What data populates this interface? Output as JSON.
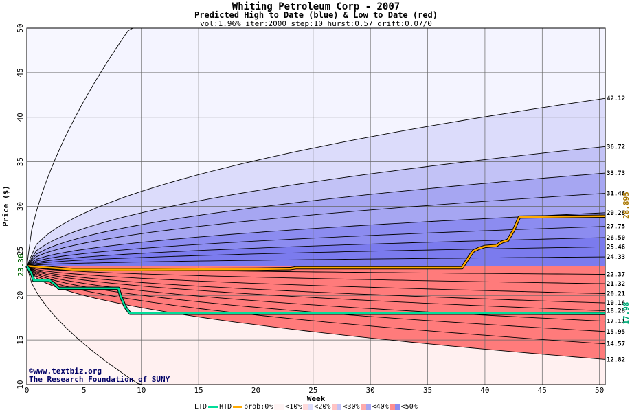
{
  "title": "Whiting Petroleum Corp - 2007",
  "subtitle": "Predicted High to Date (blue) &  Low to Date (red)",
  "params": "vol:1.96% iter:2000 step:10 hurst:0.57 drift:0.07/0",
  "credit_line1": "©www.textbiz.org",
  "credit_line2": "The Research Foundation of SUNY",
  "legend": {
    "ltd": "LTD",
    "htd": "HTD",
    "prob": "prob:0%",
    "b10": "<10%",
    "b20": "<20%",
    "b30": "<30%",
    "b40": "<40%",
    "b50": "<50%"
  },
  "colors": {
    "ltd_line": "#00dd99",
    "htd_line": "#ffaa00",
    "blue_bands": [
      "#f4f4ff",
      "#dcdcfb",
      "#c2c2f6",
      "#a6a6f2",
      "#8c8cf0",
      "#7b7bee"
    ],
    "red_bands": [
      "#fff0f0",
      "#ffdada",
      "#ffc4c4",
      "#ffabab",
      "#ff8e8e",
      "#ff7b7b"
    ]
  },
  "chart_data": {
    "type": "area",
    "xlabel": "Week",
    "ylabel": "Price ($)",
    "xlim": [
      0,
      50.5
    ],
    "ylim": [
      10,
      50
    ],
    "x_ticks": [
      0,
      5,
      10,
      15,
      20,
      25,
      30,
      35,
      40,
      45,
      50
    ],
    "y_ticks": [
      10,
      15,
      20,
      25,
      30,
      35,
      40,
      45,
      50
    ],
    "grid": true,
    "start_price": "23.30",
    "high_end_labels": [
      "42.12",
      "36.72",
      "33.73",
      "31.46",
      "29.28",
      "27.75",
      "26.50",
      "25.46",
      "24.33"
    ],
    "high_end_values": [
      42.12,
      36.72,
      33.73,
      31.46,
      29.28,
      27.75,
      26.5,
      25.46,
      24.33
    ],
    "low_end_labels": [
      "22.37",
      "21.32",
      "20.21",
      "19.16",
      "18.28",
      "17.11",
      "15.95",
      "14.57",
      "12.82"
    ],
    "low_end_values": [
      22.37,
      21.32,
      20.21,
      19.16,
      18.28,
      17.11,
      15.95,
      14.57,
      12.82
    ],
    "outer_high_end": 50,
    "outer_low_end": 10,
    "htd_label": "28.895",
    "ltd_label": "17.98",
    "htd_series": {
      "name": "HTD",
      "x": [
        0,
        3,
        4,
        10,
        20,
        23,
        23.5,
        30,
        38,
        38.2,
        38.7,
        39,
        39.5,
        40,
        41,
        41.5,
        42,
        42.5,
        43,
        50.5
      ],
      "y": [
        23.3,
        23.0,
        22.9,
        22.9,
        22.95,
        23.0,
        23.1,
        23.1,
        23.1,
        23.5,
        24.5,
        25.0,
        25.3,
        25.5,
        25.6,
        26.0,
        26.2,
        27.3,
        28.8,
        28.9
      ]
    },
    "ltd_series": {
      "name": "LTD",
      "x": [
        0,
        0.4,
        0.6,
        2,
        2.2,
        2.5,
        2.8,
        8,
        8.2,
        8.6,
        9,
        20,
        30,
        40,
        50.5
      ],
      "y": [
        23.3,
        22.5,
        21.7,
        21.7,
        21.5,
        21.2,
        20.8,
        20.8,
        19.9,
        18.7,
        18.0,
        18.0,
        18.0,
        18.0,
        17.98
      ]
    }
  }
}
